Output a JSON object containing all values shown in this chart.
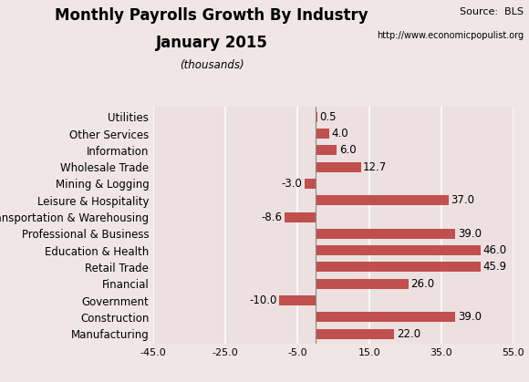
{
  "title_line1": "Monthly Payrolls Growth By Industry",
  "title_line2": "January 2015",
  "subtitle": "(thousands)",
  "source_line1": "Source:  BLS",
  "source_line2": "http://www.economicpopulist.org",
  "categories": [
    "Utilities",
    "Other Services",
    "Information",
    "Wholesale Trade",
    "Mining & Logging",
    "Leisure & Hospitality",
    "Transportation & Warehousing",
    "Professional & Business",
    "Education & Health",
    "Retail Trade",
    "Financial",
    "Government",
    "Construction",
    "Manufacturing"
  ],
  "values": [
    0.5,
    4.0,
    6.0,
    12.7,
    -3.0,
    37.0,
    -8.6,
    39.0,
    46.0,
    45.9,
    26.0,
    -10.0,
    39.0,
    22.0
  ],
  "bar_color": "#c0504d",
  "background_color": "#f0e6e6",
  "plot_bg_color": "#ede0e0",
  "xlim": [
    -45,
    55
  ],
  "xticks": [
    -45.0,
    -25.0,
    -5.0,
    15.0,
    35.0,
    55.0
  ],
  "grid_color": "#ffffff",
  "label_fontsize": 8.5,
  "value_fontsize": 8.5,
  "title_fontsize": 12,
  "source_fontsize1": 8,
  "source_fontsize2": 7
}
